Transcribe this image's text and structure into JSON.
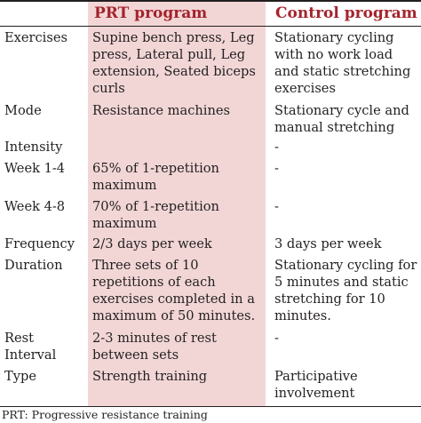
{
  "table": {
    "headers": [
      "",
      "PRT program",
      "Control program"
    ],
    "rows": [
      {
        "label": "Exercises",
        "prt": "Supine bench press, Leg\npress, Lateral pull, Leg\nextension, Seated biceps\ncurls",
        "control": "Stationary cycling\nwith no work load\nand static stretching\nexercises"
      },
      {
        "label": "Mode",
        "prt": "Resistance machines",
        "control": "Stationary cycle and\nmanual stretching"
      },
      {
        "label": "Intensity",
        "prt": "",
        "control": "-"
      },
      {
        "label": "Week 1-4",
        "prt": "65% of 1-repetition\nmaximum",
        "control": "-"
      },
      {
        "label": "Week 4-8",
        "prt": "70% of 1-repetition\nmaximum",
        "control": "-"
      },
      {
        "label": "Frequency",
        "prt": "2/3 days per week",
        "control": "3 days per week"
      },
      {
        "label": "Duration",
        "prt": "Three sets of 10\nrepetitions of each\nexercises completed in a\nmaximum of 50 minutes.",
        "control": "Stationary cycling for\n5 minutes and static\nstretching for 10\nminutes."
      },
      {
        "label": "Rest\nInterval",
        "prt": "2-3 minutes of rest\nbetween sets",
        "control": "-"
      },
      {
        "label": "Type",
        "prt": "Strength training",
        "control": "Participative\ninvolvement"
      }
    ]
  },
  "footnote": "PRT: Progressive resistance  training",
  "colors": {
    "prt_column_bg": "#f2d6d6",
    "header_text": "#a4242c",
    "body_text": "#231f20"
  }
}
